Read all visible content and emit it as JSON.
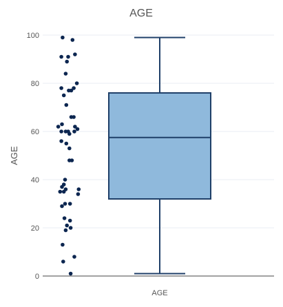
{
  "chart_data": {
    "type": "box",
    "title": "AGE",
    "xlabel": "",
    "ylabel": "AGE",
    "categories": [
      "AGE"
    ],
    "ylim": [
      0,
      100
    ],
    "yticks": [
      0,
      20,
      40,
      60,
      80,
      100
    ],
    "grid": true,
    "legend": "none",
    "colors": {
      "box_fill": "#8fb9dc",
      "box_stroke": "#1f3f68",
      "points": "#0c2650",
      "grid": "#e9eef3",
      "axis": "#444444",
      "text": "#555555"
    },
    "box": {
      "min": 1,
      "q1": 32,
      "median": 57.5,
      "q3": 76,
      "max": 99
    },
    "points": [
      {
        "x": -0.45,
        "y": 99
      },
      {
        "x": 0.35,
        "y": 98
      },
      {
        "x": 0.55,
        "y": 92
      },
      {
        "x": -0.55,
        "y": 91
      },
      {
        "x": 0.0,
        "y": 91
      },
      {
        "x": -0.1,
        "y": 89
      },
      {
        "x": -0.2,
        "y": 84
      },
      {
        "x": 0.7,
        "y": 80
      },
      {
        "x": -0.55,
        "y": 78
      },
      {
        "x": 0.45,
        "y": 78
      },
      {
        "x": 0.05,
        "y": 77
      },
      {
        "x": 0.25,
        "y": 77
      },
      {
        "x": -0.35,
        "y": 75
      },
      {
        "x": -0.15,
        "y": 71
      },
      {
        "x": 0.25,
        "y": 66
      },
      {
        "x": 0.45,
        "y": 66
      },
      {
        "x": -0.5,
        "y": 63
      },
      {
        "x": -0.8,
        "y": 62
      },
      {
        "x": 0.55,
        "y": 62
      },
      {
        "x": 0.75,
        "y": 61
      },
      {
        "x": -0.55,
        "y": 60
      },
      {
        "x": -0.2,
        "y": 60
      },
      {
        "x": 0.0,
        "y": 60
      },
      {
        "x": 0.5,
        "y": 60
      },
      {
        "x": 0.1,
        "y": 59
      },
      {
        "x": -0.55,
        "y": 56
      },
      {
        "x": -0.15,
        "y": 55
      },
      {
        "x": 0.1,
        "y": 53
      },
      {
        "x": 0.1,
        "y": 48
      },
      {
        "x": 0.3,
        "y": 48
      },
      {
        "x": -0.25,
        "y": 40
      },
      {
        "x": -0.35,
        "y": 38
      },
      {
        "x": -0.5,
        "y": 37
      },
      {
        "x": -0.2,
        "y": 36
      },
      {
        "x": 0.85,
        "y": 36
      },
      {
        "x": -0.65,
        "y": 35
      },
      {
        "x": -0.35,
        "y": 35
      },
      {
        "x": 0.8,
        "y": 34
      },
      {
        "x": -0.25,
        "y": 30
      },
      {
        "x": 0.15,
        "y": 30
      },
      {
        "x": -0.5,
        "y": 29
      },
      {
        "x": -0.3,
        "y": 24
      },
      {
        "x": 0.15,
        "y": 23
      },
      {
        "x": -0.1,
        "y": 21
      },
      {
        "x": 0.2,
        "y": 20
      },
      {
        "x": -0.2,
        "y": 19
      },
      {
        "x": -0.45,
        "y": 13
      },
      {
        "x": 0.5,
        "y": 8
      },
      {
        "x": -0.4,
        "y": 6
      },
      {
        "x": 0.2,
        "y": 1
      }
    ]
  }
}
